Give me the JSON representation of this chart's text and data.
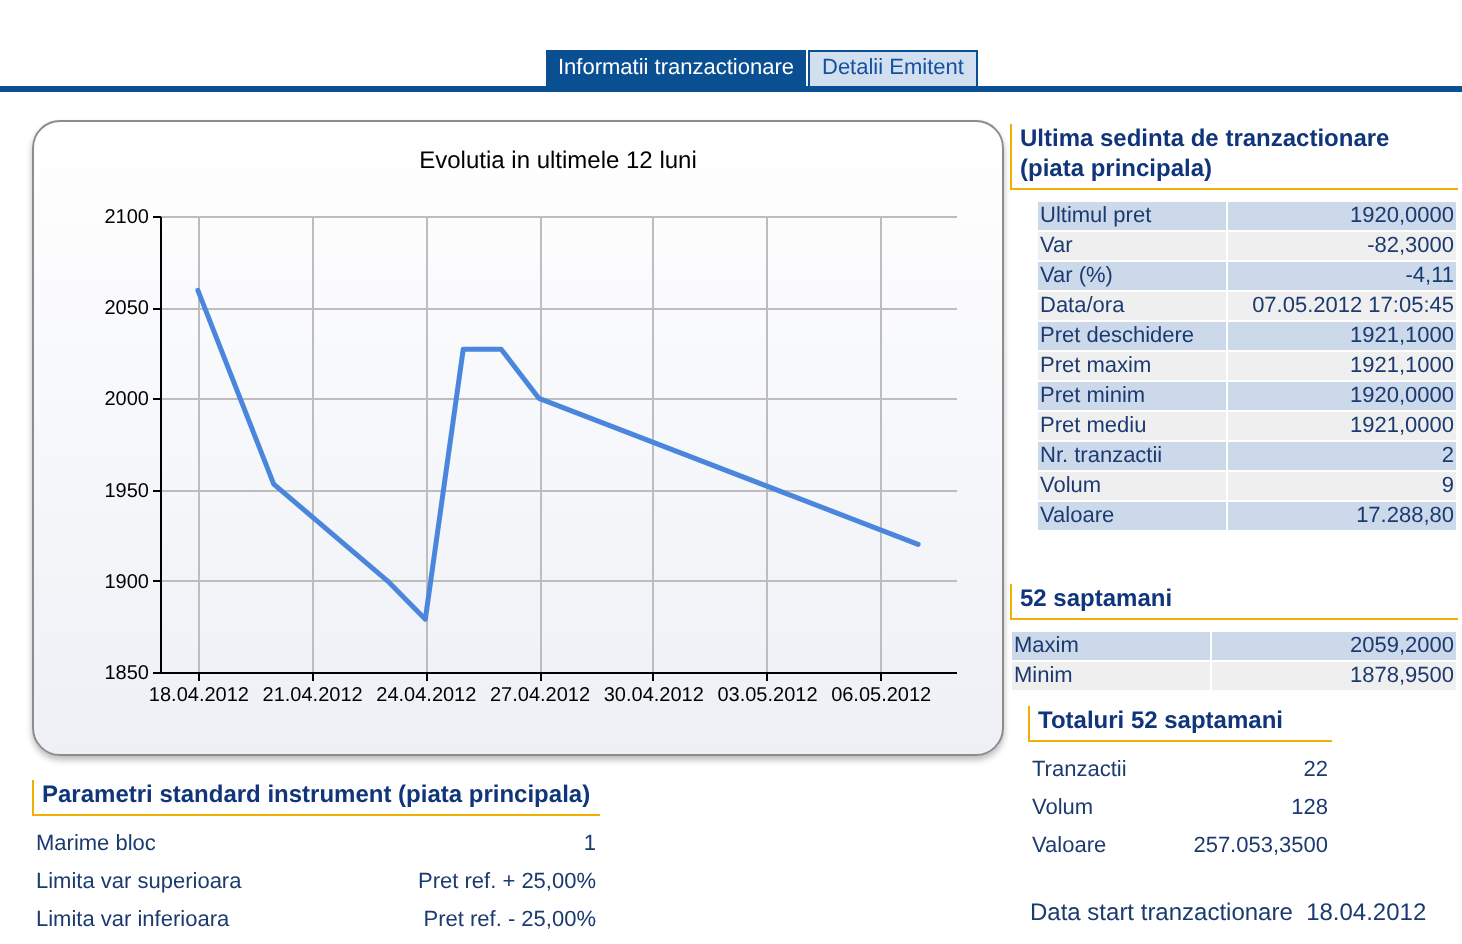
{
  "chart_data": [
    {
      "type": "line",
      "title": "Evolutia in ultimele 12 luni",
      "x": [
        "2012-04-18",
        "2012-04-20",
        "2012-04-23",
        "2012-04-24",
        "2012-04-25",
        "2012-04-26",
        "2012-04-27",
        "2012-05-07"
      ],
      "values": [
        2059.2,
        1953,
        1900,
        1878.95,
        2027,
        2027,
        2000,
        1920
      ],
      "color": "#4a86dc",
      "xlim": [
        "2012-04-17",
        "2012-05-08"
      ],
      "xticks": [
        {
          "value": "2012-04-18",
          "label": "18.04.2012"
        },
        {
          "value": "2012-04-21",
          "label": "21.04.2012"
        },
        {
          "value": "2012-04-24",
          "label": "24.04.2012"
        },
        {
          "value": "2012-04-27",
          "label": "27.04.2012"
        },
        {
          "value": "2012-04-30",
          "label": "30.04.2012"
        },
        {
          "value": "2012-05-03",
          "label": "03.05.2012"
        },
        {
          "value": "2012-05-06",
          "label": "06.05.2012"
        }
      ],
      "ylim": [
        1850,
        2100
      ],
      "yticks": [
        1850,
        1900,
        1950,
        2000,
        2050,
        2100
      ],
      "grid": true
    },
    {
      "type": "other",
      "annotations": [
        "Informatii tranzactionare",
        "Detalii Emitent"
      ]
    },
    {
      "type": "other",
      "title": "Ultima sedinta de tranzactionare (piata principala)",
      "annotations": [
        "Ultimul pret",
        "1920,0000",
        "Var",
        "-82,3000",
        "Var (%)",
        "-4,11",
        "Data/ora",
        "07.05.2012 17:05:45",
        "Pret deschidere",
        "1921,1000",
        "Pret maxim",
        "1921,1000",
        "Pret minim",
        "1920,0000",
        "Pret mediu",
        "1921,0000",
        "Nr. tranzactii",
        "2",
        "Volum",
        "9",
        "Valoare",
        "17.288,80"
      ]
    },
    {
      "type": "other",
      "title": "52 saptamani",
      "annotations": [
        "Maxim",
        "2059,2000",
        "Minim",
        "1878,9500"
      ]
    },
    {
      "type": "other",
      "title": "Totaluri 52 saptamani",
      "annotations": [
        "Tranzactii",
        "22",
        "Volum",
        "128",
        "Valoare",
        "257.053,3500"
      ]
    },
    {
      "type": "other",
      "annotations": [
        "Data start tranzactionare",
        "18.04.2012"
      ]
    },
    {
      "type": "other",
      "title": "Parametri standard instrument (piata principala)",
      "annotations": [
        "Marime bloc",
        "1",
        "Limita var superioara",
        "Pret ref. + 25,00%",
        "Limita var inferioara",
        "Pret ref. - 25,00%"
      ]
    }
  ]
}
